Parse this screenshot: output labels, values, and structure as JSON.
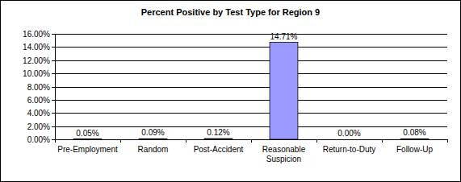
{
  "chart_data": {
    "type": "bar",
    "title": "Percent Positive by Test Type for Region 9",
    "categories": [
      "Pre-Employment",
      "Random",
      "Post-Accident",
      "Reasonable Suspicion",
      "Return-to-Duty",
      "Follow-Up"
    ],
    "values": [
      0.05,
      0.09,
      0.12,
      14.71,
      0,
      0.08
    ],
    "value_labels": [
      "0.05%",
      "0.09%",
      "0.12%",
      "14.71%",
      "0.00%",
      "0.08%"
    ],
    "color": "#9999ff",
    "ylim": [
      0,
      16
    ],
    "yticks": [
      {
        "value": 0,
        "label": "0.00%"
      },
      {
        "value": 2,
        "label": "2.00%"
      },
      {
        "value": 4,
        "label": "4.00%"
      },
      {
        "value": 6,
        "label": "6.00%"
      },
      {
        "value": 8,
        "label": "8.00%"
      },
      {
        "value": 10,
        "label": "10.00%"
      },
      {
        "value": 12,
        "label": "12.00%"
      },
      {
        "value": 14,
        "label": "14.00%"
      },
      {
        "value": 16,
        "label": "16.00%"
      }
    ],
    "grid": true,
    "data_labels": true
  }
}
